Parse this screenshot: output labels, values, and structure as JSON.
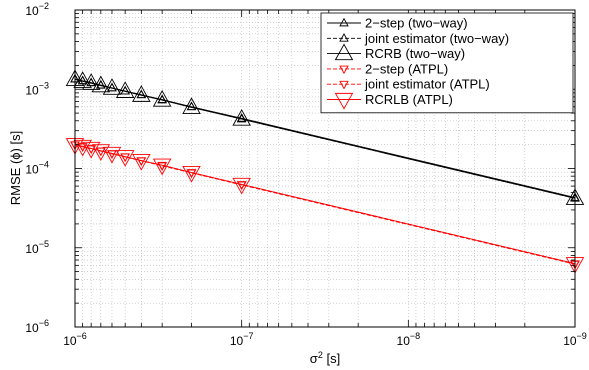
{
  "chart_data": {
    "type": "line",
    "title": "",
    "xlabel": "σ² [s]",
    "ylabel": "RMSE (ϕ) [s]",
    "xscale": "log",
    "yscale": "log",
    "xlim": [
      1e-06,
      1e-09
    ],
    "x_reversed": true,
    "ylim": [
      1e-06,
      0.01
    ],
    "grid": true,
    "legend_position": "top-right",
    "x_ticks": [
      {
        "value": 1e-06,
        "base": "10",
        "exp": "−6"
      },
      {
        "value": 1e-07,
        "base": "10",
        "exp": "−7"
      },
      {
        "value": 1e-08,
        "base": "10",
        "exp": "−8"
      },
      {
        "value": 1e-09,
        "base": "10",
        "exp": "−9"
      }
    ],
    "y_ticks": [
      {
        "value": 1e-06,
        "base": "10",
        "exp": "−6"
      },
      {
        "value": 1e-05,
        "base": "10",
        "exp": "−5"
      },
      {
        "value": 0.0001,
        "base": "10",
        "exp": "−4"
      },
      {
        "value": 0.001,
        "base": "10",
        "exp": "−3"
      },
      {
        "value": 0.01,
        "base": "10",
        "exp": "−2"
      }
    ],
    "x": [
      1e-06,
      9e-07,
      8e-07,
      7e-07,
      6e-07,
      5e-07,
      4e-07,
      3e-07,
      2e-07,
      1e-07,
      1e-09
    ],
    "series": [
      {
        "name": "2−step (two−way)",
        "color": "#000000",
        "marker": "triangle-up",
        "marker_size": "small",
        "line_style": "solid",
        "values": [
          0.00135,
          0.00128,
          0.00121,
          0.00113,
          0.00104,
          0.00095,
          0.00085,
          0.00074,
          0.0006,
          0.00043,
          4.3e-05
        ]
      },
      {
        "name": "joint estimator (two−way)",
        "color": "#000000",
        "marker": "triangle-up",
        "marker_size": "small",
        "line_style": "dashed",
        "values": [
          0.00134,
          0.00127,
          0.0012,
          0.00112,
          0.00104,
          0.00095,
          0.00085,
          0.00073,
          0.0006,
          0.00042,
          4.2e-05
        ]
      },
      {
        "name": "RCRB (two−way)",
        "color": "#000000",
        "marker": "triangle-up",
        "marker_size": "large",
        "line_style": "solid",
        "values": [
          0.00133,
          0.00126,
          0.00119,
          0.00111,
          0.00103,
          0.00094,
          0.00084,
          0.00073,
          0.00059,
          0.00042,
          4.2e-05
        ]
      },
      {
        "name": "2−step (ATPL)",
        "color": "#ff0000",
        "marker": "triangle-down",
        "marker_size": "small",
        "line_style": "dashed",
        "values": [
          0.0002,
          0.00019,
          0.000179,
          0.000167,
          0.000155,
          0.000141,
          0.000126,
          0.00011,
          8.9e-05,
          6.3e-05,
          6.3e-06
        ]
      },
      {
        "name": "joint estimator (ATPL)",
        "color": "#ff0000",
        "marker": "triangle-down",
        "marker_size": "small",
        "line_style": "dashed",
        "values": [
          0.000198,
          0.000188,
          0.000177,
          0.000166,
          0.000153,
          0.00014,
          0.000125,
          0.000108,
          8.8e-05,
          6.2e-05,
          6.2e-06
        ]
      },
      {
        "name": "RCRLB (ATPL)",
        "color": "#ff0000",
        "marker": "triangle-down",
        "marker_size": "large",
        "line_style": "solid",
        "values": [
          0.0002,
          0.00019,
          0.000179,
          0.000167,
          0.000155,
          0.000141,
          0.000126,
          0.00011,
          8.9e-05,
          6.3e-05,
          6.3e-06
        ]
      }
    ]
  }
}
